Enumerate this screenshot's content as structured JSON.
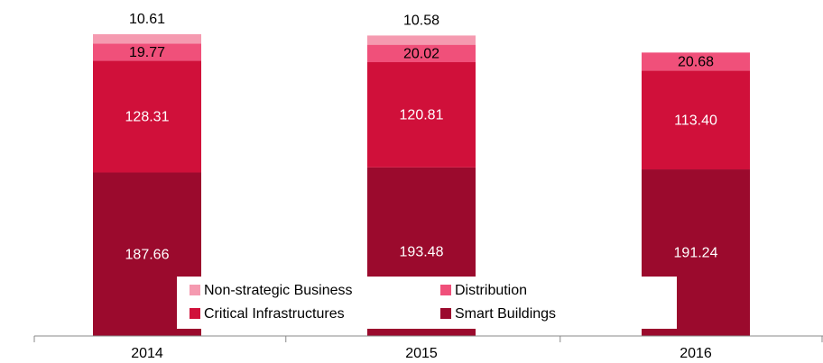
{
  "chart_data": {
    "type": "stacked-bar",
    "categories": [
      "2014",
      "2015",
      "2016"
    ],
    "series": [
      {
        "name": "Smart Buildings",
        "color": "#9b0a2d",
        "values": [
          187.66,
          193.48,
          191.24
        ],
        "value_labels": [
          "187.66",
          "193.48",
          "191.24"
        ]
      },
      {
        "name": "Critical Infrastructures",
        "color": "#d0103a",
        "values": [
          128.31,
          120.81,
          113.4
        ],
        "value_labels": [
          "128.31",
          "120.81",
          "113.40"
        ]
      },
      {
        "name": "Distribution",
        "color": "#f0507a",
        "values": [
          19.77,
          20.02,
          20.68
        ],
        "value_labels": [
          "19.77",
          "20.02",
          "20.68"
        ]
      },
      {
        "name": "Non-strategic Business",
        "color": "#f59ab0",
        "values": [
          10.61,
          10.58,
          null
        ],
        "value_labels": [
          "10.61",
          "10.58",
          null
        ]
      }
    ]
  }
}
